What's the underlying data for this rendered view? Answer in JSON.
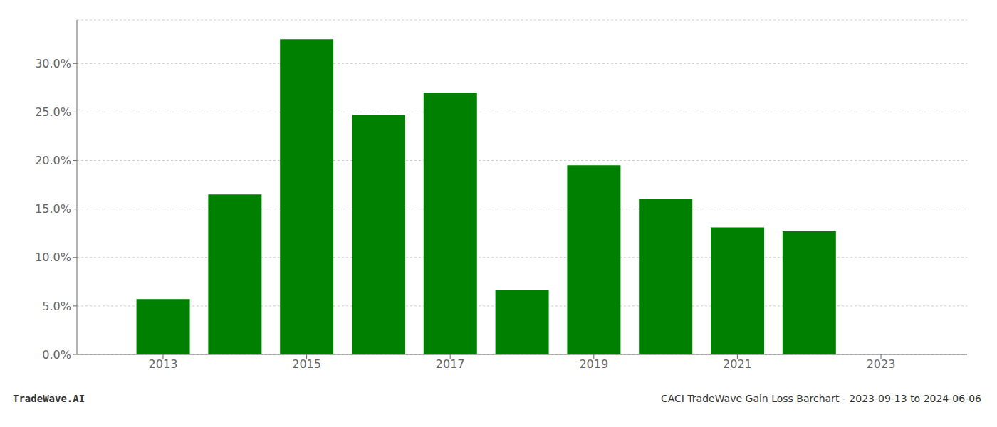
{
  "chart_data": {
    "type": "bar",
    "x": [
      2013,
      2014,
      2015,
      2016,
      2017,
      2018,
      2019,
      2020,
      2021,
      2022
    ],
    "values": [
      0.057,
      0.165,
      0.325,
      0.247,
      0.27,
      0.066,
      0.195,
      0.16,
      0.131,
      0.127
    ],
    "color": "#008000",
    "xlim": [
      2011.8,
      2024.2
    ],
    "xticks": [
      2013,
      2015,
      2017,
      2019,
      2021,
      2023
    ],
    "ylim": [
      0.0,
      0.345
    ],
    "yticks": [
      {
        "value": 0.0,
        "label": "0.0%"
      },
      {
        "value": 0.05,
        "label": "5.0%"
      },
      {
        "value": 0.1,
        "label": "10.0%"
      },
      {
        "value": 0.15,
        "label": "15.0%"
      },
      {
        "value": 0.2,
        "label": "20.0%"
      },
      {
        "value": 0.25,
        "label": "25.0%"
      },
      {
        "value": 0.3,
        "label": "30.0%"
      }
    ],
    "grid": true,
    "annotations": [
      "TradeWave.AI",
      "CACI TradeWave Gain Loss Barchart - 2023-09-13 to 2024-06-06"
    ]
  }
}
